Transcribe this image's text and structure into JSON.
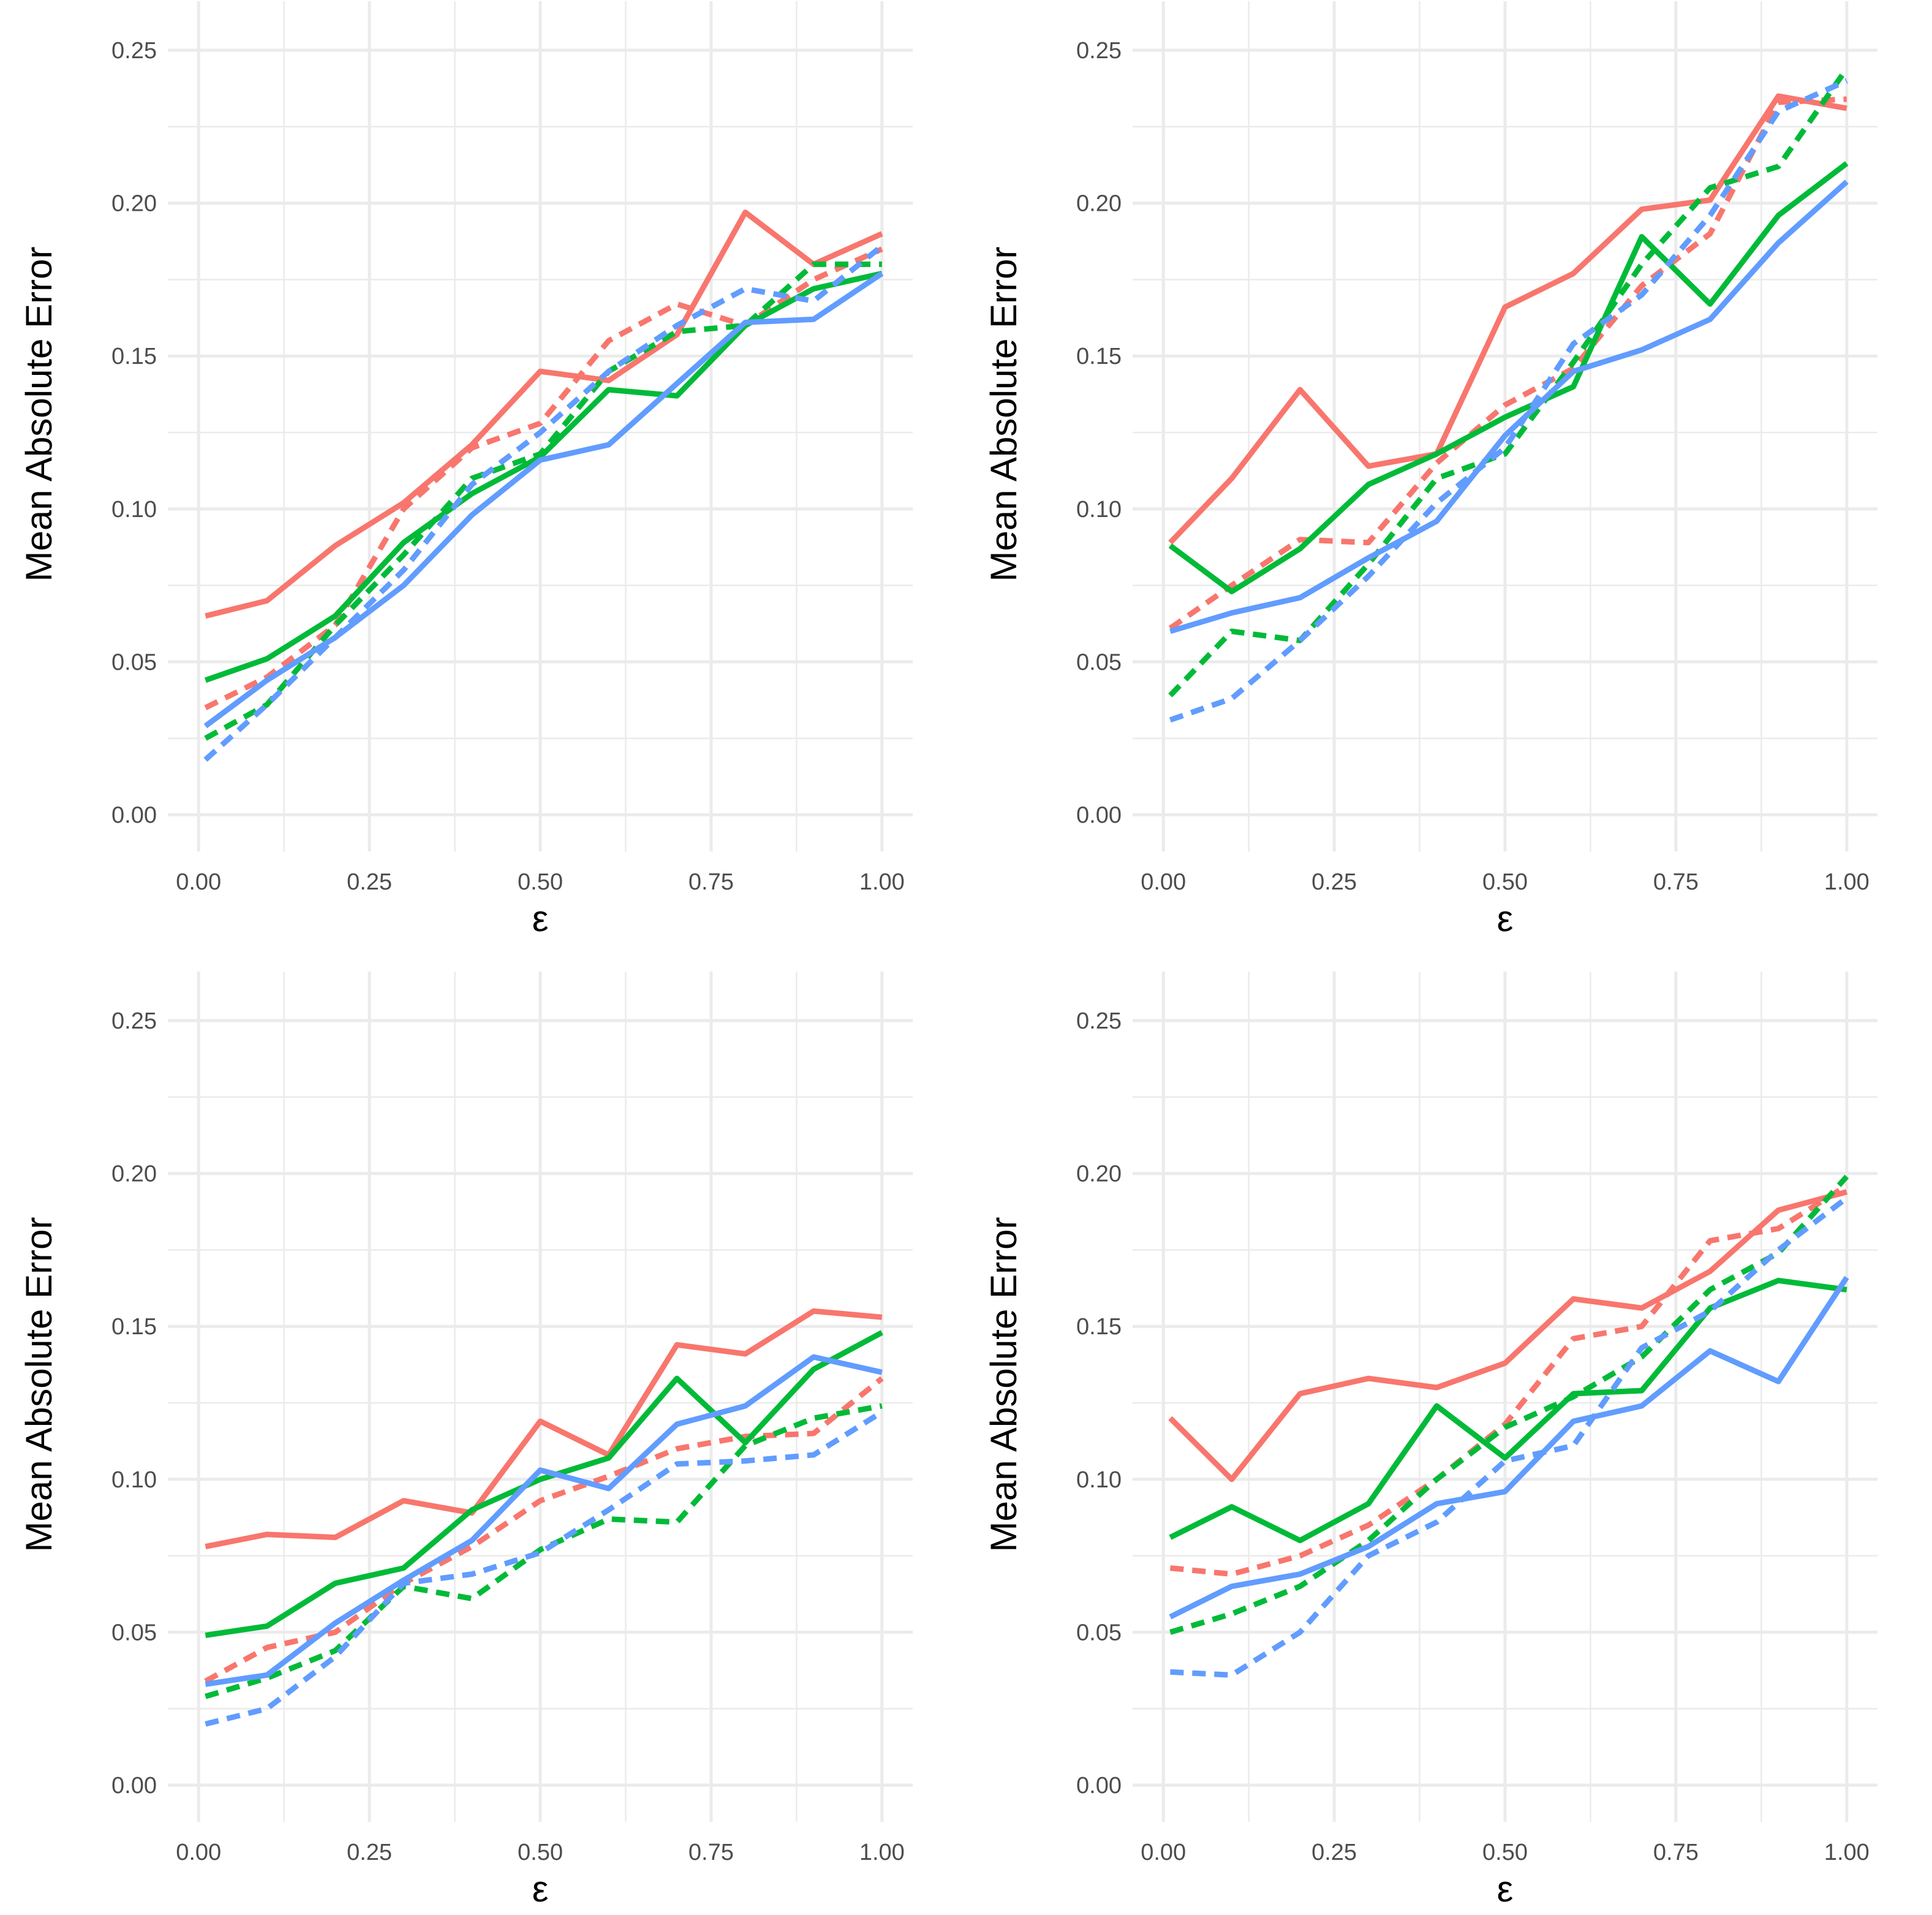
{
  "figure": {
    "columns": 2,
    "rows": 2
  },
  "colors": {
    "red": "#F8766D",
    "green": "#00BA38",
    "blue": "#619CFF",
    "grid": "#EBEBEB",
    "tick_text": "#4D4D4D"
  },
  "chart_data": [
    {
      "type": "line",
      "title": "",
      "xlabel": "ε",
      "ylabel": "Mean Absolute Error",
      "xlim": [
        0,
        1
      ],
      "ylim": [
        0,
        0.25
      ],
      "grid": true,
      "legend": "none",
      "x_ticks": [
        "0.00",
        "0.25",
        "0.50",
        "0.75",
        "1.00"
      ],
      "y_ticks": [
        "0.00",
        "0.05",
        "0.10",
        "0.15",
        "0.20",
        "0.25"
      ],
      "x": [
        0.01,
        0.1,
        0.2,
        0.3,
        0.4,
        0.5,
        0.6,
        0.7,
        0.8,
        0.9,
        1.0
      ],
      "series": [
        {
          "name": "red solid",
          "color": "#F8766D",
          "dash": "solid",
          "values": [
            0.065,
            0.07,
            0.088,
            0.102,
            0.121,
            0.145,
            0.142,
            0.157,
            0.197,
            0.18,
            0.19
          ]
        },
        {
          "name": "red dashed",
          "color": "#F8766D",
          "dash": "dashed",
          "values": [
            0.035,
            0.045,
            0.062,
            0.1,
            0.12,
            0.128,
            0.155,
            0.167,
            0.16,
            0.175,
            0.185
          ]
        },
        {
          "name": "green solid",
          "color": "#00BA38",
          "dash": "solid",
          "values": [
            0.044,
            0.051,
            0.065,
            0.089,
            0.105,
            0.117,
            0.139,
            0.137,
            0.16,
            0.172,
            0.177
          ]
        },
        {
          "name": "green dashed",
          "color": "#00BA38",
          "dash": "dashed",
          "values": [
            0.025,
            0.036,
            0.062,
            0.085,
            0.11,
            0.118,
            0.145,
            0.158,
            0.16,
            0.18,
            0.18
          ]
        },
        {
          "name": "blue solid",
          "color": "#619CFF",
          "dash": "solid",
          "values": [
            0.029,
            0.044,
            0.058,
            0.075,
            0.098,
            0.116,
            0.121,
            0.141,
            0.161,
            0.162,
            0.177
          ]
        },
        {
          "name": "blue dashed",
          "color": "#619CFF",
          "dash": "dashed",
          "values": [
            0.018,
            0.036,
            0.058,
            0.08,
            0.108,
            0.125,
            0.145,
            0.16,
            0.172,
            0.168,
            0.186
          ]
        }
      ]
    },
    {
      "type": "line",
      "title": "",
      "xlabel": "ε",
      "ylabel": "Mean Absolute Error",
      "xlim": [
        0,
        1
      ],
      "ylim": [
        0,
        0.25
      ],
      "grid": true,
      "legend": "none",
      "x_ticks": [
        "0.00",
        "0.25",
        "0.50",
        "0.75",
        "1.00"
      ],
      "y_ticks": [
        "0.00",
        "0.05",
        "0.10",
        "0.15",
        "0.20",
        "0.25"
      ],
      "x": [
        0.01,
        0.1,
        0.2,
        0.3,
        0.4,
        0.5,
        0.6,
        0.7,
        0.8,
        0.9,
        1.0
      ],
      "series": [
        {
          "name": "red solid",
          "color": "#F8766D",
          "dash": "solid",
          "values": [
            0.089,
            0.11,
            0.139,
            0.114,
            0.118,
            0.166,
            0.177,
            0.198,
            0.201,
            0.235,
            0.231
          ]
        },
        {
          "name": "red dashed",
          "color": "#F8766D",
          "dash": "dashed",
          "values": [
            0.061,
            0.075,
            0.09,
            0.089,
            0.115,
            0.134,
            0.146,
            0.173,
            0.19,
            0.233,
            0.234
          ]
        },
        {
          "name": "green solid",
          "color": "#00BA38",
          "dash": "solid",
          "values": [
            0.088,
            0.073,
            0.087,
            0.108,
            0.118,
            0.13,
            0.14,
            0.189,
            0.167,
            0.196,
            0.213
          ]
        },
        {
          "name": "green dashed",
          "color": "#00BA38",
          "dash": "dashed",
          "values": [
            0.039,
            0.06,
            0.057,
            0.082,
            0.11,
            0.118,
            0.148,
            0.18,
            0.205,
            0.212,
            0.244
          ]
        },
        {
          "name": "blue solid",
          "color": "#619CFF",
          "dash": "solid",
          "values": [
            0.06,
            0.066,
            0.071,
            0.084,
            0.096,
            0.124,
            0.145,
            0.152,
            0.162,
            0.187,
            0.207
          ]
        },
        {
          "name": "blue dashed",
          "color": "#619CFF",
          "dash": "dashed",
          "values": [
            0.031,
            0.038,
            0.057,
            0.078,
            0.102,
            0.12,
            0.154,
            0.17,
            0.196,
            0.23,
            0.24
          ]
        }
      ]
    },
    {
      "type": "line",
      "title": "",
      "xlabel": "ε",
      "ylabel": "Mean Absolute Error",
      "xlim": [
        0,
        1
      ],
      "ylim": [
        0,
        0.25
      ],
      "grid": true,
      "legend": "none",
      "x_ticks": [
        "0.00",
        "0.25",
        "0.50",
        "0.75",
        "1.00"
      ],
      "y_ticks": [
        "0.00",
        "0.05",
        "0.10",
        "0.15",
        "0.20",
        "0.25"
      ],
      "x": [
        0.01,
        0.1,
        0.2,
        0.3,
        0.4,
        0.5,
        0.6,
        0.7,
        0.8,
        0.9,
        1.0
      ],
      "series": [
        {
          "name": "red solid",
          "color": "#F8766D",
          "dash": "solid",
          "values": [
            0.078,
            0.082,
            0.081,
            0.093,
            0.089,
            0.119,
            0.108,
            0.144,
            0.141,
            0.155,
            0.153
          ]
        },
        {
          "name": "red dashed",
          "color": "#F8766D",
          "dash": "dashed",
          "values": [
            0.034,
            0.045,
            0.05,
            0.066,
            0.078,
            0.093,
            0.101,
            0.11,
            0.114,
            0.115,
            0.133
          ]
        },
        {
          "name": "green solid",
          "color": "#00BA38",
          "dash": "solid",
          "values": [
            0.049,
            0.052,
            0.066,
            0.071,
            0.09,
            0.1,
            0.107,
            0.133,
            0.112,
            0.136,
            0.148
          ]
        },
        {
          "name": "green dashed",
          "color": "#00BA38",
          "dash": "dashed",
          "values": [
            0.029,
            0.035,
            0.044,
            0.065,
            0.061,
            0.077,
            0.087,
            0.086,
            0.111,
            0.12,
            0.124
          ]
        },
        {
          "name": "blue solid",
          "color": "#619CFF",
          "dash": "solid",
          "values": [
            0.033,
            0.036,
            0.053,
            0.067,
            0.08,
            0.103,
            0.097,
            0.118,
            0.124,
            0.14,
            0.135
          ]
        },
        {
          "name": "blue dashed",
          "color": "#619CFF",
          "dash": "dashed",
          "values": [
            0.02,
            0.025,
            0.042,
            0.066,
            0.069,
            0.076,
            0.09,
            0.105,
            0.106,
            0.108,
            0.122
          ]
        }
      ]
    },
    {
      "type": "line",
      "title": "",
      "xlabel": "ε",
      "ylabel": "Mean Absolute Error",
      "xlim": [
        0,
        1
      ],
      "ylim": [
        0,
        0.25
      ],
      "grid": true,
      "legend": "none",
      "x_ticks": [
        "0.00",
        "0.25",
        "0.50",
        "0.75",
        "1.00"
      ],
      "y_ticks": [
        "0.00",
        "0.05",
        "0.10",
        "0.15",
        "0.20",
        "0.25"
      ],
      "x": [
        0.01,
        0.1,
        0.2,
        0.3,
        0.4,
        0.5,
        0.6,
        0.7,
        0.8,
        0.9,
        1.0
      ],
      "series": [
        {
          "name": "red solid",
          "color": "#F8766D",
          "dash": "solid",
          "values": [
            0.12,
            0.1,
            0.128,
            0.133,
            0.13,
            0.138,
            0.159,
            0.156,
            0.168,
            0.188,
            0.194
          ]
        },
        {
          "name": "red dashed",
          "color": "#F8766D",
          "dash": "dashed",
          "values": [
            0.071,
            0.069,
            0.075,
            0.085,
            0.1,
            0.118,
            0.146,
            0.15,
            0.178,
            0.182,
            0.196
          ]
        },
        {
          "name": "green solid",
          "color": "#00BA38",
          "dash": "solid",
          "values": [
            0.081,
            0.091,
            0.08,
            0.092,
            0.124,
            0.107,
            0.128,
            0.129,
            0.156,
            0.165,
            0.162
          ]
        },
        {
          "name": "green dashed",
          "color": "#00BA38",
          "dash": "dashed",
          "values": [
            0.05,
            0.056,
            0.065,
            0.08,
            0.1,
            0.117,
            0.127,
            0.14,
            0.162,
            0.174,
            0.199
          ]
        },
        {
          "name": "blue solid",
          "color": "#619CFF",
          "dash": "solid",
          "values": [
            0.055,
            0.065,
            0.069,
            0.078,
            0.092,
            0.096,
            0.119,
            0.124,
            0.142,
            0.132,
            0.166
          ]
        },
        {
          "name": "blue dashed",
          "color": "#619CFF",
          "dash": "dashed",
          "values": [
            0.037,
            0.036,
            0.05,
            0.075,
            0.086,
            0.106,
            0.111,
            0.143,
            0.155,
            0.175,
            0.192
          ]
        }
      ]
    }
  ]
}
